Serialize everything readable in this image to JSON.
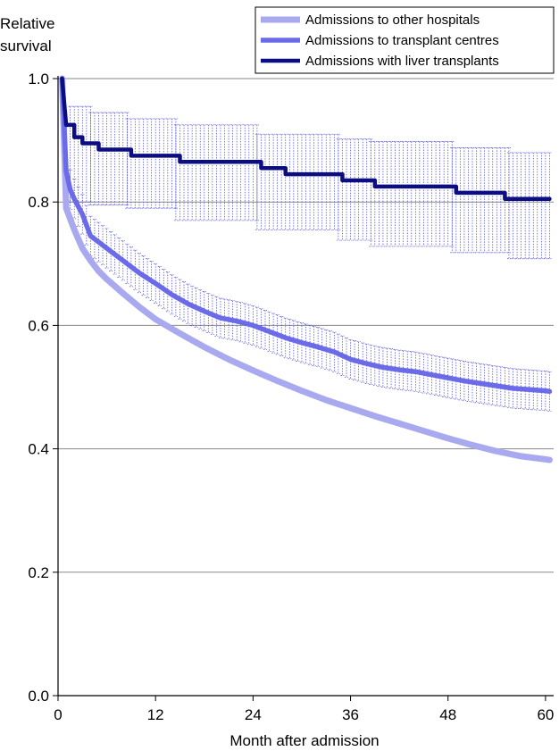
{
  "chart_data": {
    "type": "line",
    "ylabel_lines": [
      "Relative",
      "survival"
    ],
    "xlabel": "Month after admission",
    "xlim": [
      0,
      61
    ],
    "ylim": [
      0,
      1
    ],
    "xticks": [
      0,
      12,
      24,
      36,
      48,
      60
    ],
    "yticks": [
      0.0,
      0.2,
      0.4,
      0.6,
      0.8,
      1.0
    ],
    "ytick_labels": [
      "0.0",
      "0.2",
      "0.4",
      "0.6",
      "0.8",
      "1.0"
    ],
    "grid": "horizontal",
    "legend_position": "top-right",
    "series": [
      {
        "name": "Admissions to other hospitals",
        "color": "#a9a9f0",
        "x": [
          0.5,
          1,
          2,
          3,
          4,
          5,
          6,
          8,
          10,
          12,
          15,
          18,
          21,
          24,
          27,
          30,
          33,
          36,
          39,
          42,
          45,
          48,
          51,
          54,
          57,
          60,
          60.5
        ],
        "y": [
          1.0,
          0.79,
          0.755,
          0.725,
          0.705,
          0.688,
          0.675,
          0.652,
          0.63,
          0.61,
          0.587,
          0.565,
          0.545,
          0.527,
          0.51,
          0.494,
          0.479,
          0.466,
          0.453,
          0.441,
          0.429,
          0.417,
          0.406,
          0.396,
          0.388,
          0.383,
          0.382
        ],
        "error_half": 0.004
      },
      {
        "name": "Admissions to transplant centres",
        "color": "#6b6bea",
        "x": [
          0.5,
          1,
          1.5,
          2,
          3,
          4,
          5,
          6,
          8,
          10,
          12,
          14,
          16,
          18,
          20,
          22,
          24,
          26,
          28,
          30,
          32,
          34,
          36,
          38,
          40,
          42,
          44,
          46,
          48,
          50,
          52,
          54,
          56,
          58,
          60,
          60.5
        ],
        "y": [
          1.0,
          0.85,
          0.82,
          0.805,
          0.78,
          0.745,
          0.735,
          0.725,
          0.705,
          0.685,
          0.668,
          0.65,
          0.635,
          0.623,
          0.612,
          0.607,
          0.6,
          0.59,
          0.58,
          0.572,
          0.565,
          0.557,
          0.545,
          0.538,
          0.532,
          0.528,
          0.525,
          0.52,
          0.515,
          0.51,
          0.506,
          0.502,
          0.498,
          0.496,
          0.494,
          0.493
        ],
        "error_half": 0.032
      },
      {
        "name": "Admissions with liver transplants",
        "color": "#0d0d82",
        "x": [
          0.5,
          1,
          2,
          3,
          4,
          5,
          6,
          8,
          9,
          12,
          14,
          15,
          18,
          20,
          24,
          25,
          26,
          28,
          30,
          34,
          35,
          36,
          38,
          39,
          42,
          48,
          49,
          52,
          53,
          54,
          55,
          56,
          60,
          60.5
        ],
        "y": [
          1.0,
          0.925,
          0.905,
          0.895,
          0.895,
          0.885,
          0.885,
          0.885,
          0.875,
          0.875,
          0.875,
          0.865,
          0.865,
          0.865,
          0.865,
          0.855,
          0.855,
          0.845,
          0.845,
          0.845,
          0.835,
          0.835,
          0.835,
          0.825,
          0.825,
          0.825,
          0.815,
          0.815,
          0.815,
          0.815,
          0.805,
          0.805,
          0.805,
          0.805
        ],
        "step": true,
        "ci": [
          {
            "from": 1.5,
            "to": 4,
            "low": 0.8,
            "high": 0.955
          },
          {
            "from": 4,
            "to": 8.5,
            "low": 0.795,
            "high": 0.945
          },
          {
            "from": 8.5,
            "to": 14.5,
            "low": 0.79,
            "high": 0.935
          },
          {
            "from": 14.5,
            "to": 24.5,
            "low": 0.77,
            "high": 0.925
          },
          {
            "from": 24.5,
            "to": 34.5,
            "low": 0.755,
            "high": 0.91
          },
          {
            "from": 34.5,
            "to": 38.5,
            "low": 0.738,
            "high": 0.902
          },
          {
            "from": 38.5,
            "to": 48.5,
            "low": 0.728,
            "high": 0.898
          },
          {
            "from": 48.5,
            "to": 55.5,
            "low": 0.718,
            "high": 0.888
          },
          {
            "from": 55.5,
            "to": 60.5,
            "low": 0.708,
            "high": 0.88
          }
        ]
      }
    ]
  }
}
